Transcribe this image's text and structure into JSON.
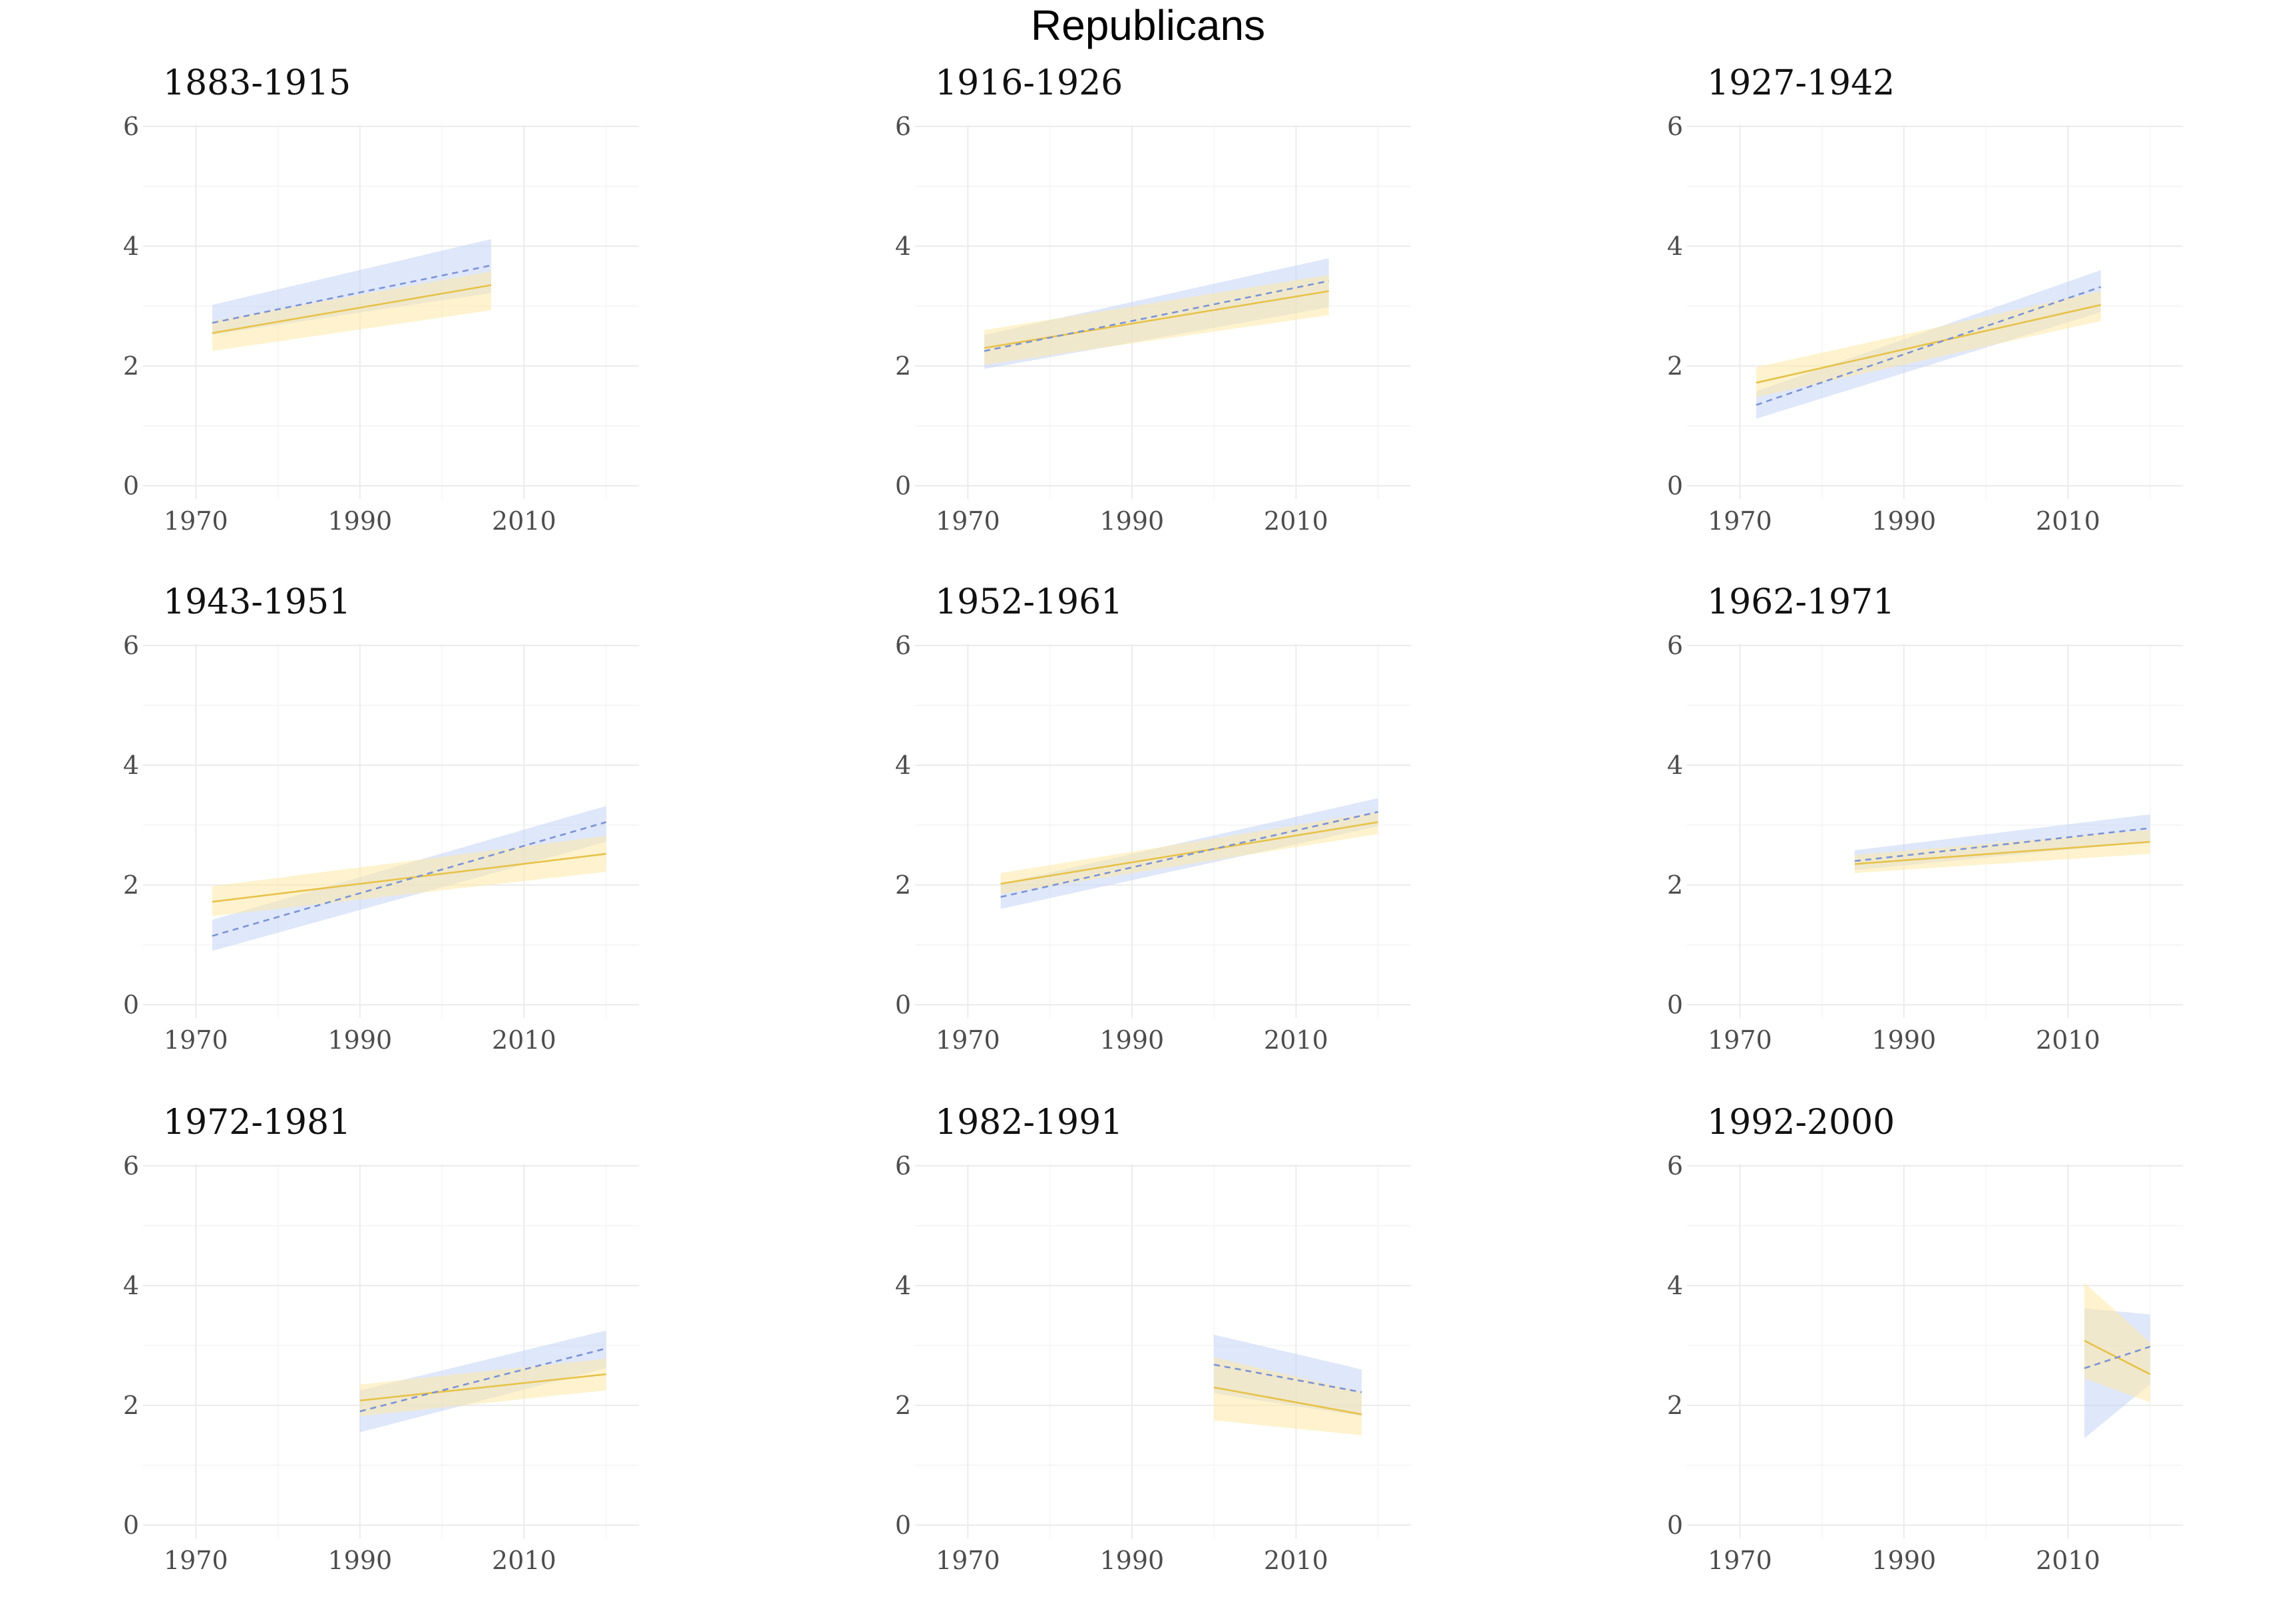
{
  "title": "Republicans",
  "colors": {
    "blue_line": "#7b93d6",
    "blue_band": "#c5d3f5",
    "gold_line": "#e6c24a",
    "gold_band": "#fde9a6"
  },
  "chart_data": {
    "type": "line",
    "xlim": [
      1966,
      2024
    ],
    "ylim": [
      0,
      6
    ],
    "x_ticks": [
      1970,
      1990,
      2010
    ],
    "y_ticks": [
      0,
      2,
      4,
      6
    ],
    "grid": true,
    "panels": [
      {
        "title": "1883-1915",
        "x_start": 1972,
        "x_end": 2006,
        "blue": {
          "y": [
            2.72,
            3.68
          ],
          "lo": [
            2.52,
            3.22
          ],
          "hi": [
            3.02,
            4.12
          ]
        },
        "gold": {
          "y": [
            2.55,
            3.35
          ],
          "lo": [
            2.25,
            2.93
          ],
          "hi": [
            2.75,
            3.58
          ]
        }
      },
      {
        "title": "1916-1926",
        "x_start": 1972,
        "x_end": 2014,
        "blue": {
          "y": [
            2.25,
            3.42
          ],
          "lo": [
            1.95,
            2.98
          ],
          "hi": [
            2.52,
            3.8
          ]
        },
        "gold": {
          "y": [
            2.3,
            3.25
          ],
          "lo": [
            2.02,
            2.85
          ],
          "hi": [
            2.6,
            3.52
          ]
        }
      },
      {
        "title": "1927-1942",
        "x_start": 1972,
        "x_end": 2014,
        "blue": {
          "y": [
            1.35,
            3.32
          ],
          "lo": [
            1.12,
            2.9
          ],
          "hi": [
            1.58,
            3.6
          ]
        },
        "gold": {
          "y": [
            1.72,
            3.02
          ],
          "lo": [
            1.48,
            2.75
          ],
          "hi": [
            1.98,
            3.25
          ]
        }
      },
      {
        "title": "1943-1951",
        "x_start": 1972,
        "x_end": 2020,
        "blue": {
          "y": [
            1.15,
            3.05
          ],
          "lo": [
            0.9,
            2.72
          ],
          "hi": [
            1.42,
            3.32
          ]
        },
        "gold": {
          "y": [
            1.72,
            2.52
          ],
          "lo": [
            1.48,
            2.22
          ],
          "hi": [
            1.98,
            2.82
          ]
        }
      },
      {
        "title": "1952-1961",
        "x_start": 1974,
        "x_end": 2020,
        "blue": {
          "y": [
            1.8,
            3.22
          ],
          "lo": [
            1.6,
            2.98
          ],
          "hi": [
            2.02,
            3.45
          ]
        },
        "gold": {
          "y": [
            2.02,
            3.05
          ],
          "lo": [
            1.85,
            2.85
          ],
          "hi": [
            2.2,
            3.22
          ]
        }
      },
      {
        "title": "1962-1971",
        "x_start": 1984,
        "x_end": 2020,
        "blue": {
          "y": [
            2.4,
            2.95
          ],
          "lo": [
            2.25,
            2.72
          ],
          "hi": [
            2.58,
            3.18
          ]
        },
        "gold": {
          "y": [
            2.35,
            2.72
          ],
          "lo": [
            2.2,
            2.52
          ],
          "hi": [
            2.5,
            2.92
          ]
        }
      },
      {
        "title": "1972-1981",
        "x_start": 1990,
        "x_end": 2020,
        "blue": {
          "y": [
            1.9,
            2.95
          ],
          "lo": [
            1.55,
            2.62
          ],
          "hi": [
            2.25,
            3.25
          ]
        },
        "gold": {
          "y": [
            2.08,
            2.52
          ],
          "lo": [
            1.82,
            2.25
          ],
          "hi": [
            2.35,
            2.78
          ]
        }
      },
      {
        "title": "1982-1991",
        "x_start": 2000,
        "x_end": 2018,
        "blue": {
          "y": [
            2.68,
            2.22
          ],
          "lo": [
            2.2,
            1.82
          ],
          "hi": [
            3.18,
            2.6
          ]
        },
        "gold": {
          "y": [
            2.3,
            1.85
          ],
          "lo": [
            1.75,
            1.5
          ],
          "hi": [
            2.8,
            2.22
          ]
        }
      },
      {
        "title": "1992-2000",
        "x_start": 2012,
        "x_end": 2020,
        "blue": {
          "y": [
            2.62,
            2.98
          ],
          "lo": [
            1.45,
            2.35
          ],
          "hi": [
            3.62,
            3.52
          ]
        },
        "gold": {
          "y": [
            3.08,
            2.52
          ],
          "lo": [
            2.45,
            2.05
          ],
          "hi": [
            4.05,
            3.05
          ]
        }
      }
    ]
  }
}
